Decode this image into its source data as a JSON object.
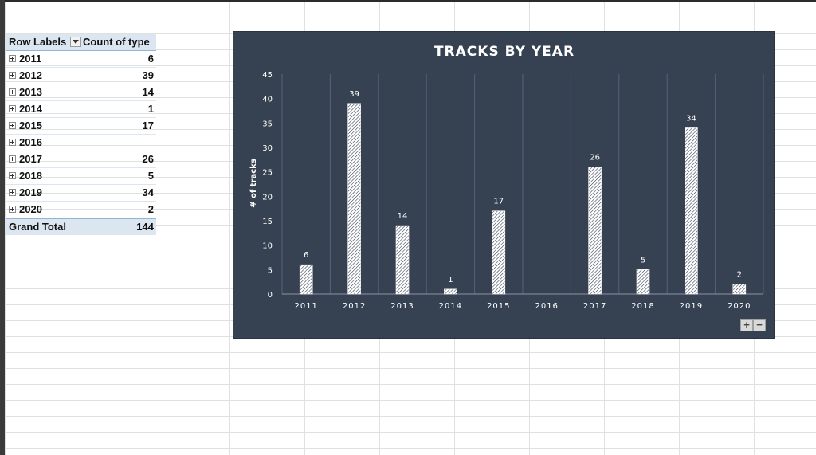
{
  "pivot": {
    "headers": {
      "row_labels": "Row Labels",
      "count": "Count of type"
    },
    "rows": [
      {
        "label": "2011",
        "value": "6"
      },
      {
        "label": "2012",
        "value": "39"
      },
      {
        "label": "2013",
        "value": "14"
      },
      {
        "label": "2014",
        "value": "1"
      },
      {
        "label": "2015",
        "value": "17"
      },
      {
        "label": "2016",
        "value": ""
      },
      {
        "label": "2017",
        "value": "26"
      },
      {
        "label": "2018",
        "value": "5"
      },
      {
        "label": "2019",
        "value": "34"
      },
      {
        "label": "2020",
        "value": "2"
      }
    ],
    "total": {
      "label": "Grand Total",
      "value": "144"
    }
  },
  "chart_data": {
    "type": "bar",
    "title": "TRACKS BY YEAR",
    "xlabel": "",
    "ylabel": "# of tracks",
    "categories": [
      "2011",
      "2012",
      "2013",
      "2014",
      "2015",
      "2016",
      "2017",
      "2018",
      "2019",
      "2020"
    ],
    "values": [
      6,
      39,
      14,
      1,
      17,
      null,
      26,
      5,
      34,
      2
    ],
    "ylim": [
      0,
      45
    ],
    "yticks": [
      0,
      5,
      10,
      15,
      20,
      25,
      30,
      35,
      40,
      45
    ],
    "grid": true,
    "legend": "none",
    "colors": {
      "background": "#364152",
      "bar_fill": "#ffffff",
      "bar_hatch": "#364152"
    }
  },
  "chart_controls": {
    "zoom_in": "+",
    "zoom_out": "−"
  }
}
